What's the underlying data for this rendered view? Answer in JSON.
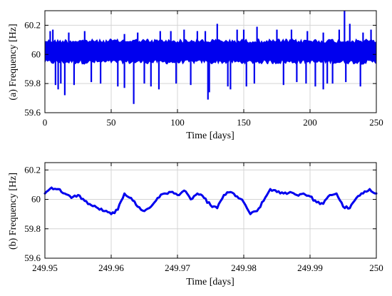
{
  "chart_data": [
    {
      "type": "line",
      "panel": "a",
      "xlabel": "Time [days]",
      "ylabel": "(a) Frequency [Hz]",
      "xlim": [
        0,
        250
      ],
      "ylim": [
        59.6,
        60.3
      ],
      "xticks": [
        0,
        50,
        100,
        150,
        200,
        250
      ],
      "xtick_labels": [
        "0",
        "50",
        "100",
        "150",
        "200",
        "250"
      ],
      "yticks": [
        59.6,
        59.8,
        60,
        60.2
      ],
      "ytick_labels": [
        "59.6",
        "59.8",
        "60",
        "60.2"
      ],
      "grid": true,
      "color": "#0000ee",
      "series": [
        {
          "band_lower": -0.07,
          "band_upper": 0.11,
          "low_spikes": [
            [
              8,
              59.79
            ],
            [
              10,
              59.76
            ],
            [
              12,
              59.8
            ],
            [
              15,
              59.72
            ],
            [
              22,
              59.79
            ],
            [
              35,
              59.81
            ],
            [
              42,
              59.8
            ],
            [
              55,
              59.78
            ],
            [
              60,
              59.77
            ],
            [
              67,
              59.66
            ],
            [
              75,
              59.8
            ],
            [
              80,
              59.78
            ],
            [
              86,
              59.76
            ],
            [
              99,
              59.8
            ],
            [
              110,
              59.79
            ],
            [
              123,
              59.69
            ],
            [
              124,
              59.74
            ],
            [
              138,
              59.78
            ],
            [
              140,
              59.76
            ],
            [
              152,
              59.78
            ],
            [
              158,
              59.8
            ],
            [
              180,
              59.79
            ],
            [
              190,
              59.81
            ],
            [
              197,
              59.8
            ],
            [
              204,
              59.78
            ],
            [
              210,
              59.76
            ],
            [
              213,
              59.8
            ],
            [
              217,
              59.8
            ],
            [
              227,
              59.81
            ],
            [
              238,
              59.78
            ]
          ],
          "high_spikes": [
            [
              4,
              60.16
            ],
            [
              6,
              60.17
            ],
            [
              18,
              60.15
            ],
            [
              30,
              60.16
            ],
            [
              60,
              60.14
            ],
            [
              70,
              60.15
            ],
            [
              87,
              60.16
            ],
            [
              95,
              60.16
            ],
            [
              105,
              60.17
            ],
            [
              115,
              60.16
            ],
            [
              121,
              60.16
            ],
            [
              130,
              60.21
            ],
            [
              145,
              60.17
            ],
            [
              150,
              60.17
            ],
            [
              160,
              60.19
            ],
            [
              175,
              60.17
            ],
            [
              186,
              60.17
            ],
            [
              198,
              60.16
            ],
            [
              210,
              60.15
            ],
            [
              222,
              60.17
            ],
            [
              226,
              60.3
            ],
            [
              230,
              60.21
            ],
            [
              240,
              60.15
            ],
            [
              246,
              60.17
            ]
          ]
        }
      ]
    },
    {
      "type": "line",
      "panel": "b",
      "xlabel": "Time [days]",
      "ylabel": "(b) Frequency [Hz]",
      "xlim": [
        249.95,
        250
      ],
      "ylim": [
        59.6,
        60.25
      ],
      "xticks": [
        249.95,
        249.96,
        249.97,
        249.98,
        249.99,
        250
      ],
      "xtick_labels": [
        "249.95",
        "249.96",
        "249.97",
        "249.98",
        "249.99",
        "250"
      ],
      "yticks": [
        59.6,
        59.8,
        60,
        60.2
      ],
      "ytick_labels": [
        "59.6",
        "59.8",
        "60",
        "60.2"
      ],
      "grid": true,
      "color": "#0000ee",
      "series": [
        {
          "x": [
            249.95,
            249.951,
            249.952,
            249.953,
            249.954,
            249.955,
            249.956,
            249.957,
            249.958,
            249.959,
            249.96,
            249.961,
            249.962,
            249.963,
            249.964,
            249.965,
            249.966,
            249.967,
            249.968,
            249.969,
            249.97,
            249.971,
            249.972,
            249.973,
            249.974,
            249.975,
            249.976,
            249.977,
            249.978,
            249.979,
            249.98,
            249.981,
            249.982,
            249.983,
            249.984,
            249.985,
            249.986,
            249.987,
            249.988,
            249.989,
            249.99,
            249.991,
            249.992,
            249.993,
            249.994,
            249.995,
            249.996,
            249.997,
            249.998,
            249.999,
            250
          ],
          "y": [
            60.04,
            60.08,
            60.07,
            60.04,
            60.01,
            60.03,
            59.99,
            59.96,
            59.94,
            59.92,
            59.9,
            59.93,
            60.04,
            60.01,
            59.95,
            59.92,
            59.95,
            60.01,
            60.04,
            60.05,
            60.03,
            60.06,
            60.0,
            60.04,
            60.01,
            59.96,
            59.94,
            60.03,
            60.05,
            60.02,
            59.98,
            59.9,
            59.92,
            59.99,
            60.07,
            60.05,
            60.04,
            60.05,
            60.03,
            60.04,
            60.02,
            59.98,
            59.97,
            60.03,
            60.04,
            59.95,
            59.94,
            60.01,
            60.04,
            60.07,
            60.04
          ]
        }
      ]
    }
  ]
}
